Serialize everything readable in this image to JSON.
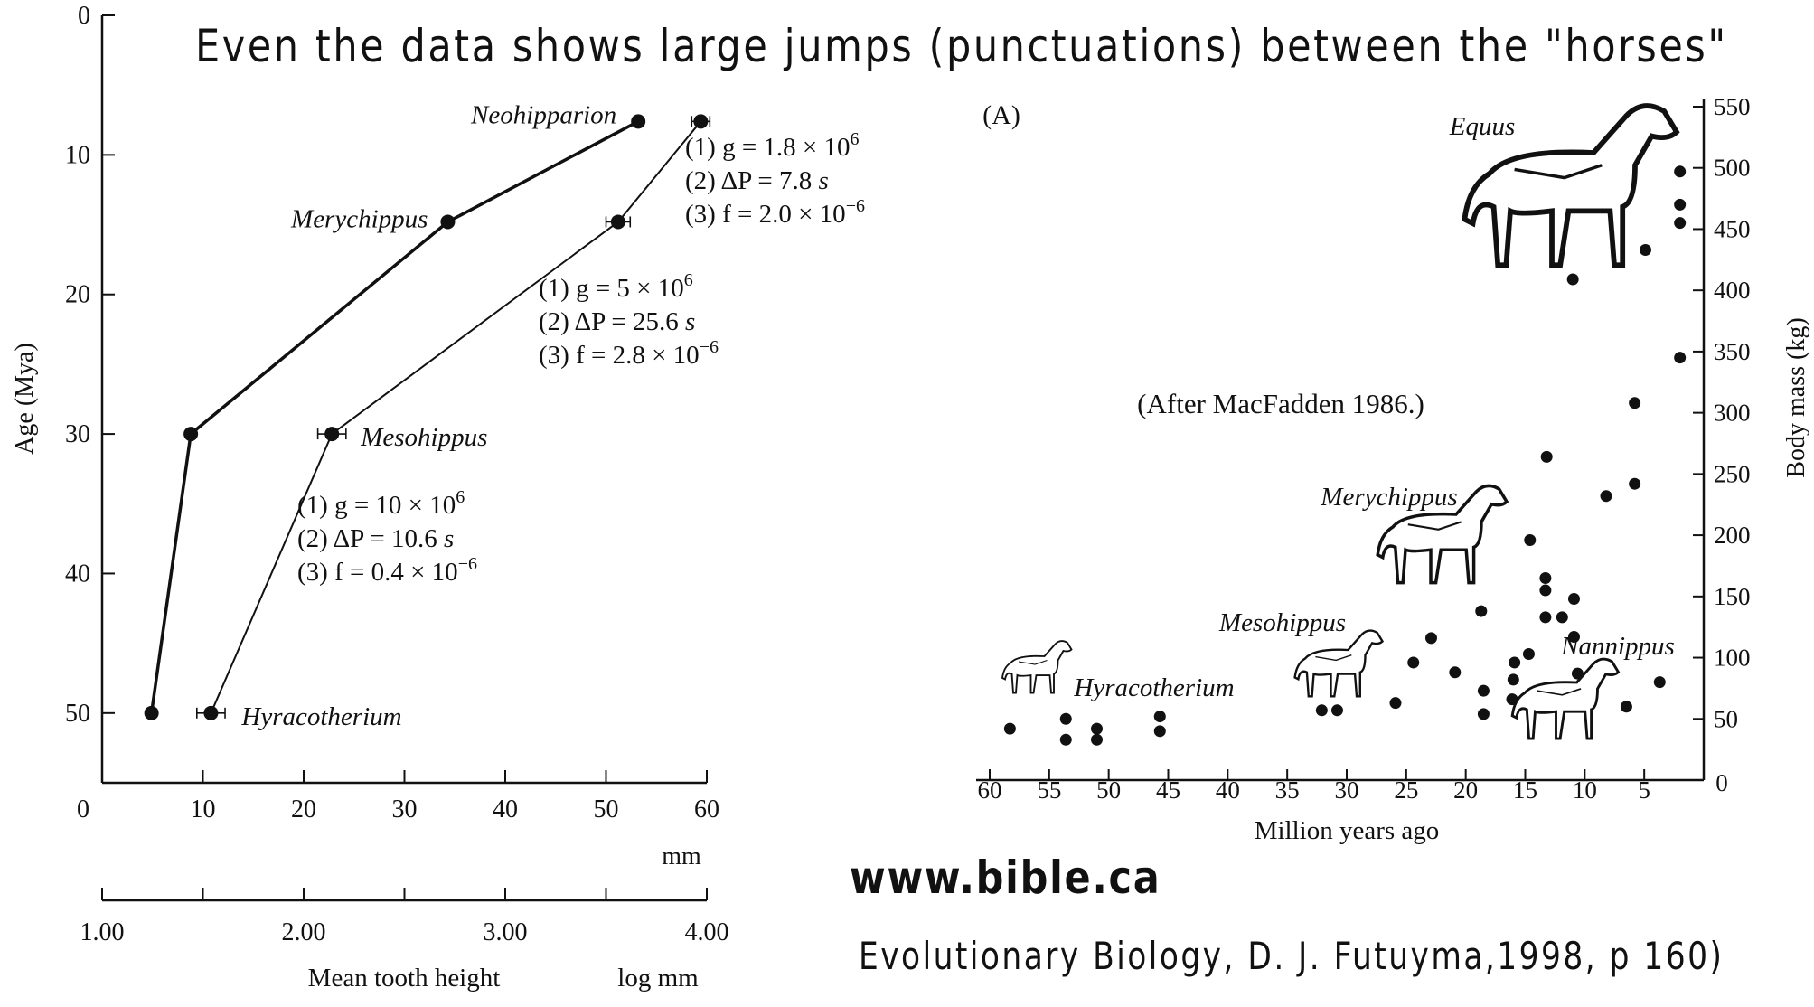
{
  "page": {
    "title": "Even the data shows large jumps (punctuations) between the \"horses\"",
    "website": "www.bible.ca",
    "citation": "Evolutionary Biology, D. J. Futuyma,1998, p 160)"
  },
  "chart_data": [
    {
      "type": "line",
      "ylabel": "Age (Mya)",
      "ylim": [
        55,
        0
      ],
      "yticks": [
        "0",
        "10",
        "20",
        "30",
        "40",
        "50"
      ],
      "xlim": [
        0,
        60
      ],
      "xticks": [
        "0",
        "10",
        "20",
        "30",
        "40",
        "50",
        "60"
      ],
      "xunit": "mm",
      "xticks_log": [
        "1.00",
        "2.00",
        "3.00",
        "4.00"
      ],
      "xlabel": "Mean tooth height",
      "xunit_log": "log mm",
      "grid": false,
      "series": [
        {
          "style": "thick",
          "points": [
            {
              "x": 4.9,
              "y": 50
            },
            {
              "x": 8.8,
              "y": 30
            },
            {
              "x": 34.3,
              "y": 14.8
            },
            {
              "x": 53.2,
              "y": 7.6
            }
          ]
        },
        {
          "style": "thin",
          "points": [
            {
              "x": 10.8,
              "y": 50,
              "label": "Hyracotherium",
              "err": 1.4
            },
            {
              "x": 22.8,
              "y": 30,
              "label": "Mesohippus",
              "err": 1.4
            },
            {
              "x": 51.2,
              "y": 14.8,
              "label": "Merychippus",
              "err": 1.2
            },
            {
              "x": 59.4,
              "y": 7.6,
              "label": "Neohipparion",
              "err": 0.9
            }
          ]
        }
      ],
      "point_labels": [
        {
          "text": "Neohipparion",
          "at": [
            53.2,
            7.6
          ]
        },
        {
          "text": "Merychippus",
          "at": [
            34.3,
            14.8
          ]
        },
        {
          "text": "Mesohippus",
          "at": [
            22.8,
            30
          ]
        },
        {
          "text": "Hyracotherium",
          "at": [
            10.8,
            50
          ]
        }
      ],
      "annotations": [
        {
          "lines": [
            "(1) g = 1.8 × 10",
            "(2) ΔP = 7.8 s",
            "(3) f = 2.0 × 10"
          ],
          "sup": [
            "6",
            "",
            "−6"
          ]
        },
        {
          "lines": [
            "(1) g = 5 × 10",
            "(2) ΔP = 25.6 s",
            "(3) f = 2.8 × 10"
          ],
          "sup": [
            "6",
            "",
            "−6"
          ]
        },
        {
          "lines": [
            "(1) g = 10 × 10",
            "(2) ΔP = 10.6 s",
            "(3) f = 0.4 × 10"
          ],
          "sup": [
            "6",
            "",
            "−6"
          ]
        }
      ]
    },
    {
      "type": "scatter",
      "panel_label": "(A)",
      "xlabel": "Million years ago",
      "ylabel": "Body mass (kg)",
      "xlim": [
        61,
        0
      ],
      "ylim": [
        0,
        560
      ],
      "xticks": [
        "60",
        "55",
        "50",
        "45",
        "40",
        "35",
        "30",
        "25",
        "20",
        "15",
        "10",
        "5",
        "0"
      ],
      "yticks": [
        "50",
        "100",
        "150",
        "200",
        "250",
        "300",
        "350",
        "400",
        "450",
        "500",
        "550"
      ],
      "grid": false,
      "source_note": "(After MacFadden 1986.)",
      "taxa_labels": [
        "Equus",
        "Merychippus",
        "Mesohippus",
        "Nannippus",
        "Hyracotherium"
      ],
      "points": [
        {
          "x": 58.3,
          "y": 42
        },
        {
          "x": 53.6,
          "y": 50
        },
        {
          "x": 53.6,
          "y": 33
        },
        {
          "x": 51.0,
          "y": 42
        },
        {
          "x": 51.0,
          "y": 33
        },
        {
          "x": 45.7,
          "y": 52
        },
        {
          "x": 45.7,
          "y": 40
        },
        {
          "x": 32.1,
          "y": 57
        },
        {
          "x": 30.8,
          "y": 57
        },
        {
          "x": 25.9,
          "y": 63
        },
        {
          "x": 24.4,
          "y": 96
        },
        {
          "x": 22.9,
          "y": 116
        },
        {
          "x": 20.9,
          "y": 88
        },
        {
          "x": 18.7,
          "y": 138
        },
        {
          "x": 18.5,
          "y": 73
        },
        {
          "x": 18.5,
          "y": 54
        },
        {
          "x": 16.1,
          "y": 66
        },
        {
          "x": 16.0,
          "y": 82
        },
        {
          "x": 15.9,
          "y": 96
        },
        {
          "x": 14.7,
          "y": 103
        },
        {
          "x": 14.6,
          "y": 196
        },
        {
          "x": 13.3,
          "y": 165
        },
        {
          "x": 13.3,
          "y": 155
        },
        {
          "x": 13.3,
          "y": 133
        },
        {
          "x": 13.3,
          "y": 74
        },
        {
          "x": 13.2,
          "y": 264
        },
        {
          "x": 11.9,
          "y": 133
        },
        {
          "x": 10.9,
          "y": 148
        },
        {
          "x": 10.9,
          "y": 117
        },
        {
          "x": 11.0,
          "y": 409
        },
        {
          "x": 10.6,
          "y": 87
        },
        {
          "x": 8.2,
          "y": 232
        },
        {
          "x": 6.5,
          "y": 60
        },
        {
          "x": 5.8,
          "y": 242
        },
        {
          "x": 5.8,
          "y": 308
        },
        {
          "x": 4.9,
          "y": 433
        },
        {
          "x": 3.7,
          "y": 80
        },
        {
          "x": 2.0,
          "y": 497
        },
        {
          "x": 2.0,
          "y": 470
        },
        {
          "x": 2.0,
          "y": 455
        },
        {
          "x": 2.0,
          "y": 345
        }
      ]
    }
  ]
}
